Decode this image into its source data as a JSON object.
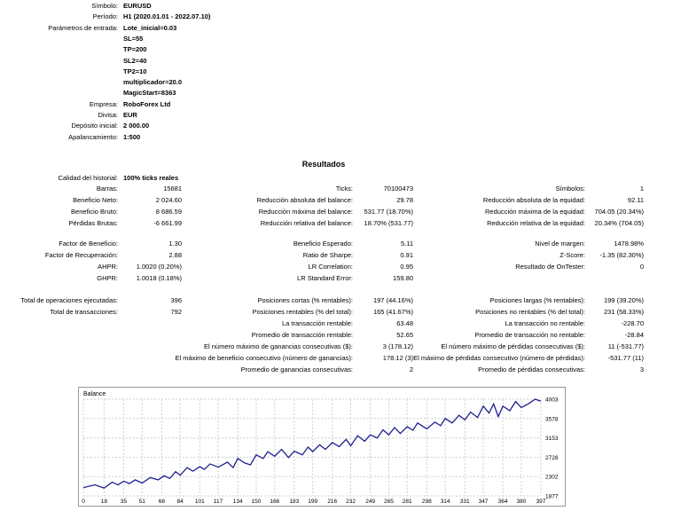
{
  "settings": [
    {
      "label": "Símbolo:",
      "value": "EURUSD"
    },
    {
      "label": "Período:",
      "value": "H1 (2020.01.01 - 2022.07.10)"
    },
    {
      "label": "Parámetros de entrada:",
      "value": "Lote_inicial=0.03"
    },
    {
      "label": "",
      "value": "SL=55"
    },
    {
      "label": "",
      "value": "TP=200"
    },
    {
      "label": "",
      "value": "SL2=40"
    },
    {
      "label": "",
      "value": "TP2=10"
    },
    {
      "label": "",
      "value": "multiplicador=20.0"
    },
    {
      "label": "",
      "value": "MagicStart=8363"
    },
    {
      "label": "Empresa:",
      "value": "RoboForex Ltd"
    },
    {
      "label": "Divisa:",
      "value": "EUR"
    },
    {
      "label": "Depósito inicial:",
      "value": "2 000.00"
    },
    {
      "label": "Apalancamiento:",
      "value": "1:500"
    }
  ],
  "results_title": "Resultados",
  "history_quality": {
    "label": "Calidad del historial:",
    "value": "100% ticks reales"
  },
  "col1": [
    {
      "label": "Barras:",
      "value": "15681"
    },
    {
      "label": "Beneficio Neto:",
      "value": "2 024.60"
    },
    {
      "label": "Beneficio Bruto:",
      "value": "8 686.59"
    },
    {
      "label": "Pérdidas Brutas:",
      "value": "-6 661.99"
    },
    {
      "label": "Factor de Beneficio:",
      "value": "1.30"
    },
    {
      "label": "Factor de Recuperación:",
      "value": "2.88"
    },
    {
      "label": "AHPR:",
      "value": "1.0020 (0.20%)"
    },
    {
      "label": "GHPR:",
      "value": "1.0018 (0.18%)"
    },
    {
      "label": "Total de operaciones ejecutadas:",
      "value": "396"
    },
    {
      "label": "Total de transacciones:",
      "value": "792"
    }
  ],
  "col2": [
    {
      "label": "Ticks:",
      "value": "70100473"
    },
    {
      "label": "Reducción absoluta del balance:",
      "value": "29.78"
    },
    {
      "label": "Reducción máxima del balance:",
      "value": "531.77 (18.70%)"
    },
    {
      "label": "Reducción relativa del balance:",
      "value": "18.70% (531.77)"
    },
    {
      "label": "Beneficio Esperado:",
      "value": "5.11"
    },
    {
      "label": "Ratio de Sharpe:",
      "value": "0.91"
    },
    {
      "label": "LR Correlation:",
      "value": "0.95"
    },
    {
      "label": "LR Standard Error:",
      "value": "159.80"
    },
    {
      "label": "Posiciones cortas (% rentables):",
      "value": "197 (44.16%)"
    },
    {
      "label": "Posiciones rentables (% del total):",
      "value": "165 (41.67%)"
    },
    {
      "label": "La transacción rentable:",
      "value": "63.48"
    },
    {
      "label": "Promedio de transacción rentable:",
      "value": "52.65"
    },
    {
      "label": "El número máximo de ganancias consecutivas ($):",
      "value": "3 (178.12)"
    },
    {
      "label": "El máximo de beneficio consecutivo (número de ganancias):",
      "value": "178.12 (3)"
    },
    {
      "label": "Promedio de ganancias consecutivas:",
      "value": "2"
    }
  ],
  "col3": [
    {
      "label": "Símbolos:",
      "value": "1"
    },
    {
      "label": "Reducción absoluta de la equidad:",
      "value": "92.11"
    },
    {
      "label": "Reducción máxima de la equidad:",
      "value": "704.05 (20.34%)"
    },
    {
      "label": "Reducción relativa de la equidad:",
      "value": "20.34% (704.05)"
    },
    {
      "label": "Nivel de margen:",
      "value": "1478.98%"
    },
    {
      "label": "Z-Score:",
      "value": "-1.35 (82.30%)"
    },
    {
      "label": "Resultado de OnTester:",
      "value": "0"
    },
    {
      "label": "Posiciones largas (% rentables):",
      "value": "199 (39.20%)"
    },
    {
      "label": "Posiciones no rentables (% del total):",
      "value": "231 (58.33%)"
    },
    {
      "label": "La transacción no rentable:",
      "value": "-228.70"
    },
    {
      "label": "Promedio de transacción no rentable:",
      "value": "-28.84"
    },
    {
      "label": "El número máximo de pérdidas consecutivas ($):",
      "value": "11 (-531.77)"
    },
    {
      "label": "El máximo de pérdidas consecutivo (número de pérdidas):",
      "value": "-531.77 (11)"
    },
    {
      "label": "Promedio de pérdidas consecutivas:",
      "value": "3"
    }
  ],
  "chart_data": {
    "type": "line",
    "title": "Balance",
    "xticks": [
      "0",
      "18",
      "35",
      "51",
      "68",
      "84",
      "101",
      "117",
      "134",
      "150",
      "166",
      "183",
      "199",
      "216",
      "232",
      "249",
      "265",
      "281",
      "298",
      "314",
      "331",
      "347",
      "364",
      "380",
      "397"
    ],
    "yticks": [
      "4003",
      "3578",
      "3153",
      "2728",
      "2302",
      "1877"
    ],
    "xlim": [
      0,
      397
    ],
    "ylim": [
      1877,
      4003
    ],
    "grid": true,
    "series": [
      {
        "color": "#1f1f8f",
        "x": [
          0,
          10,
          18,
          25,
          30,
          35,
          40,
          45,
          51,
          58,
          65,
          70,
          75,
          80,
          84,
          90,
          95,
          101,
          105,
          110,
          117,
          125,
          130,
          134,
          140,
          145,
          150,
          156,
          160,
          166,
          172,
          178,
          183,
          190,
          195,
          199,
          205,
          210,
          216,
          222,
          228,
          232,
          238,
          244,
          249,
          255,
          260,
          265,
          270,
          275,
          281,
          286,
          290,
          298,
          305,
          310,
          314,
          320,
          326,
          331,
          336,
          342,
          347,
          352,
          356,
          360,
          364,
          370,
          375,
          380,
          386,
          392,
          397
        ],
        "y": [
          2060,
          2120,
          2050,
          2180,
          2120,
          2200,
          2150,
          2230,
          2160,
          2280,
          2230,
          2320,
          2260,
          2410,
          2330,
          2500,
          2420,
          2520,
          2460,
          2580,
          2510,
          2620,
          2500,
          2700,
          2600,
          2560,
          2780,
          2700,
          2850,
          2750,
          2900,
          2720,
          2860,
          2780,
          2950,
          2850,
          3000,
          2900,
          3050,
          2960,
          3120,
          2980,
          3200,
          3080,
          3220,
          3150,
          3330,
          3220,
          3380,
          3250,
          3400,
          3320,
          3480,
          3350,
          3500,
          3420,
          3580,
          3480,
          3650,
          3550,
          3720,
          3600,
          3850,
          3700,
          3900,
          3620,
          3850,
          3750,
          3950,
          3820,
          3900,
          4003,
          3960
        ]
      }
    ]
  }
}
